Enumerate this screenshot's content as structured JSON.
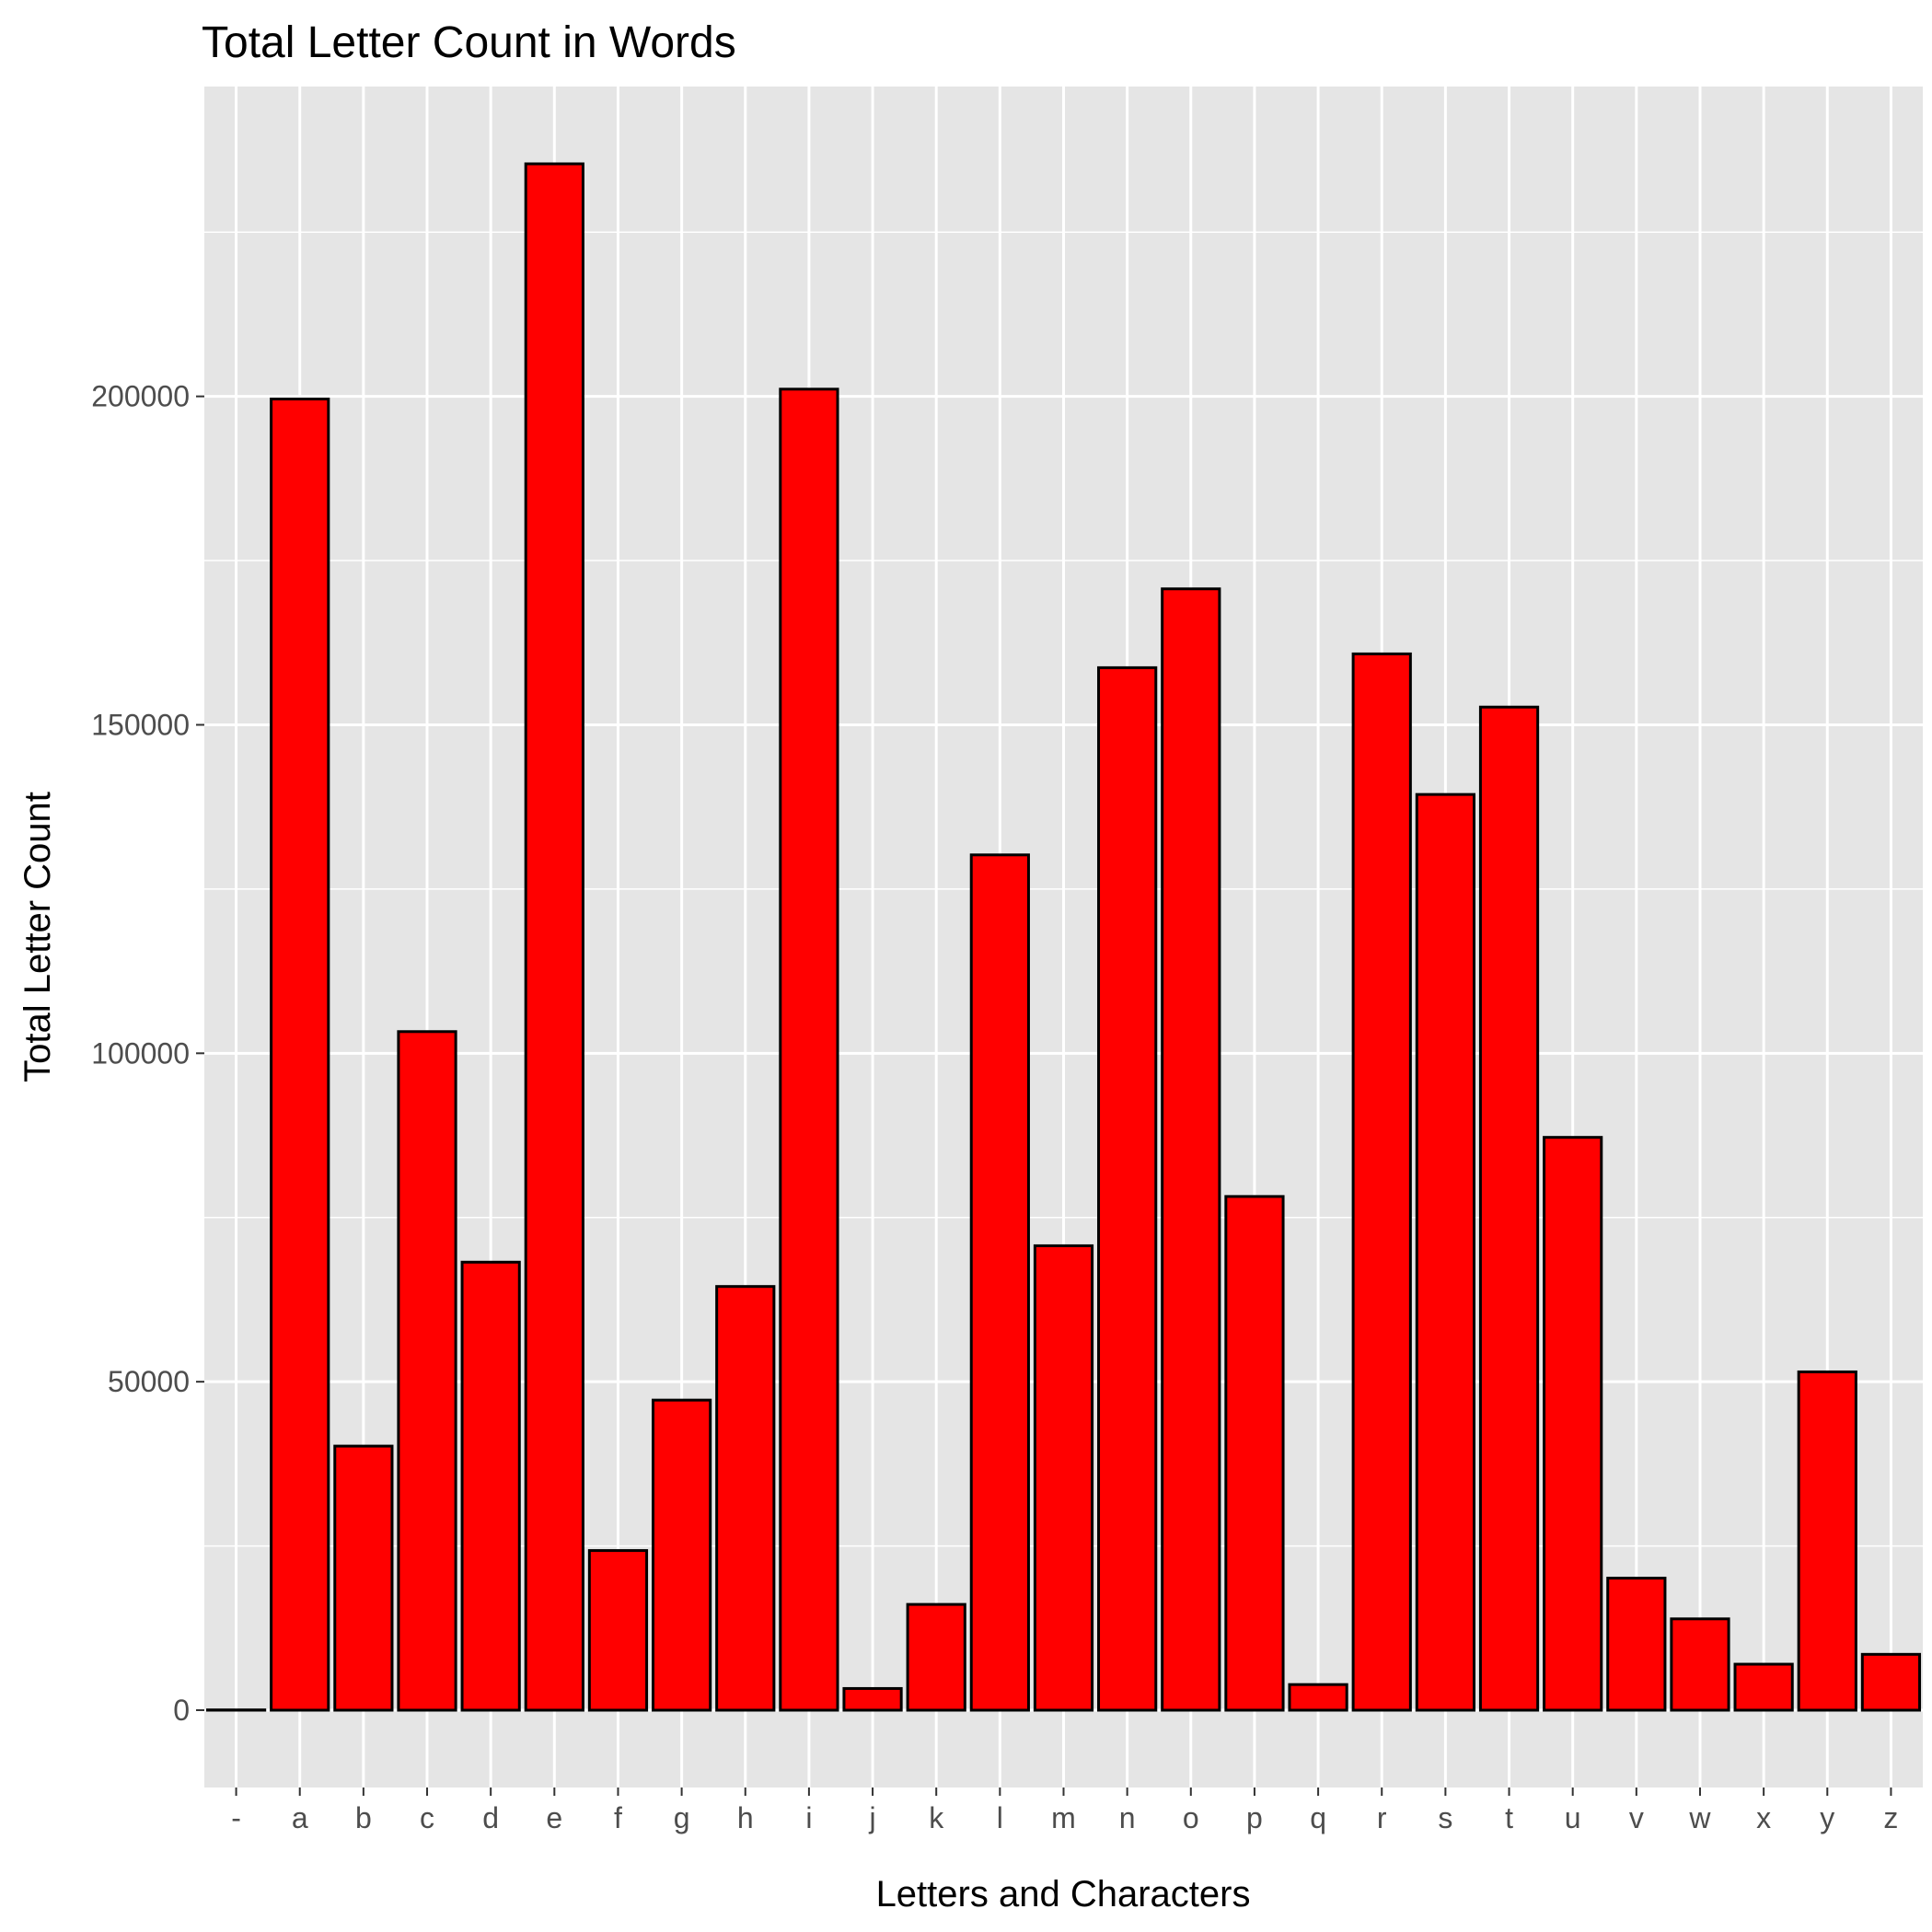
{
  "chart_data": {
    "type": "bar",
    "title": "Total Letter Count in Words",
    "xlabel": "Letters and Characters",
    "ylabel": "Total Letter Count",
    "categories": [
      "-",
      "a",
      "b",
      "c",
      "d",
      "e",
      "f",
      "g",
      "h",
      "i",
      "j",
      "k",
      "l",
      "m",
      "n",
      "o",
      "p",
      "q",
      "r",
      "s",
      "t",
      "u",
      "v",
      "w",
      "x",
      "y",
      "z"
    ],
    "values": [
      40,
      199600,
      40200,
      103300,
      68200,
      235400,
      24300,
      47200,
      64500,
      201100,
      3300,
      16100,
      130200,
      70700,
      158700,
      170700,
      78200,
      3900,
      160800,
      139400,
      152700,
      87200,
      20100,
      13900,
      7000,
      51500,
      8500
    ],
    "yticks": [
      0,
      50000,
      100000,
      150000,
      200000
    ],
    "ytick_labels": [
      "0",
      "50000",
      "100000",
      "150000",
      "200000"
    ],
    "ylim": [
      -11770,
      247170
    ],
    "grid": true,
    "bar_fill": "#ff0000",
    "bar_outline": "#000000",
    "panel_background": "#e5e5e5",
    "legend": "none"
  }
}
